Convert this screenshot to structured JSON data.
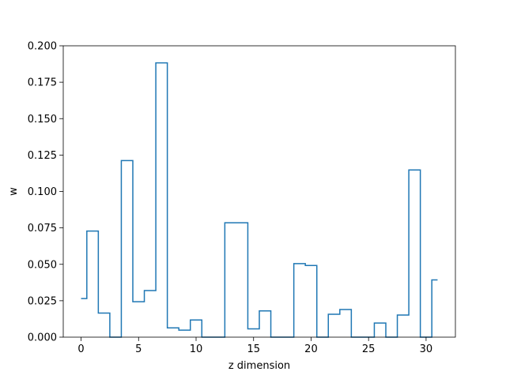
{
  "chart_data": {
    "type": "line",
    "step": "mid",
    "xlabel": "z dimension",
    "ylabel": "w",
    "xlim": [
      -1.55,
      32.55
    ],
    "ylim": [
      0.0,
      0.2
    ],
    "x": [
      0,
      1,
      2,
      3,
      4,
      5,
      6,
      7,
      8,
      9,
      10,
      11,
      12,
      13,
      14,
      15,
      16,
      17,
      18,
      19,
      20,
      21,
      22,
      23,
      24,
      25,
      26,
      27,
      28,
      29,
      30,
      31
    ],
    "values": [
      0.0265,
      0.0728,
      0.0165,
      0.0,
      0.1212,
      0.0243,
      0.032,
      0.1883,
      0.0064,
      0.0048,
      0.0118,
      0.0,
      0.0,
      0.0785,
      0.0785,
      0.0057,
      0.018,
      0.0,
      0.0,
      0.0505,
      0.0492,
      0.0,
      0.0157,
      0.019,
      0.0,
      0.0,
      0.0097,
      0.0,
      0.0152,
      0.1148,
      0.0,
      0.0393
    ],
    "x_ticks": [
      0,
      5,
      10,
      15,
      20,
      25,
      30
    ],
    "x_tick_labels": [
      "0",
      "5",
      "10",
      "15",
      "20",
      "25",
      "30"
    ],
    "y_ticks": [
      0.0,
      0.025,
      0.05,
      0.075,
      0.1,
      0.125,
      0.15,
      0.175,
      0.2
    ],
    "y_tick_labels": [
      "0.000",
      "0.025",
      "0.050",
      "0.075",
      "0.100",
      "0.125",
      "0.150",
      "0.175",
      "0.200"
    ],
    "grid": false,
    "line_color": "#1f77b4"
  }
}
